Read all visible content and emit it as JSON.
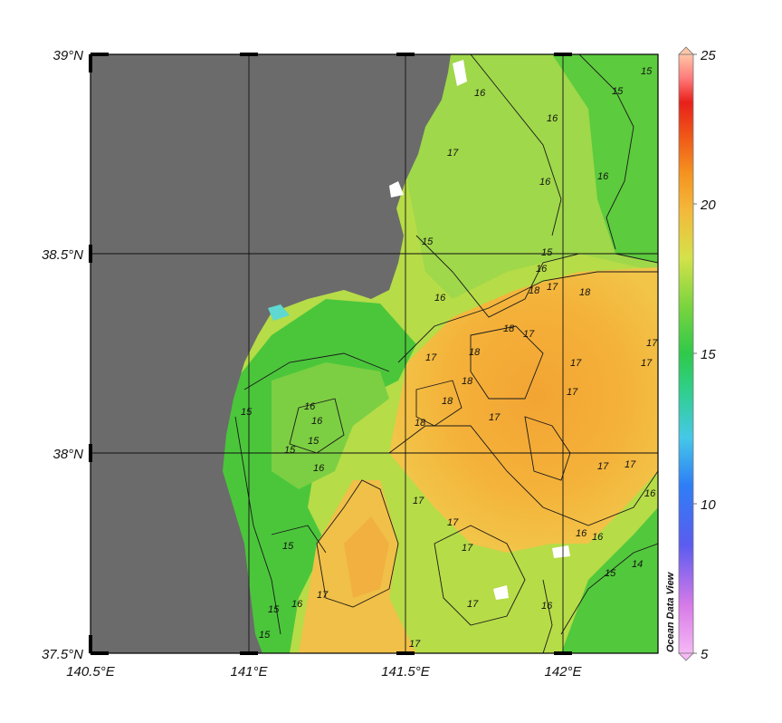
{
  "map": {
    "lat_labels": [
      "39°N",
      "38.5°N",
      "38°N",
      "37.5°N"
    ],
    "lon_labels": [
      "140.5°E",
      "141°E",
      "141.5°E",
      "142°E"
    ],
    "colors": {
      "land": "#6b6b6b",
      "frame": "#000000",
      "sst_15": "#3ec63a",
      "sst_16": "#8fd447",
      "sst_17": "#c8e24a",
      "sst_18": "#f2b43a",
      "sst_19": "#f5a02a"
    },
    "contour_labels": [
      "15",
      "15",
      "16",
      "17",
      "16",
      "16",
      "15",
      "16",
      "17",
      "18",
      "18",
      "16",
      "16",
      "15",
      "18",
      "17",
      "17",
      "18",
      "18",
      "17",
      "17",
      "17",
      "17",
      "18",
      "17",
      "18",
      "16",
      "16",
      "15",
      "15",
      "15",
      "16",
      "15",
      "17",
      "17",
      "17",
      "17",
      "17",
      "15",
      "15",
      "16",
      "16",
      "17",
      "15",
      "14",
      "16",
      "17",
      "16",
      "16",
      "17"
    ]
  },
  "colorbar": {
    "ticks": [
      "25",
      "20",
      "15",
      "10",
      "5"
    ],
    "colors": [
      "#f7b3ff",
      "#e070ff",
      "#3a5bff",
      "#37b8ff",
      "#55e0d0",
      "#2fc94a",
      "#70d23f",
      "#d4e24a",
      "#ffb23a",
      "#ff8a1a",
      "#ff4a10",
      "#e8201a",
      "#ff6a6a",
      "#ffc0a0"
    ]
  },
  "watermark": "Ocean Data View"
}
